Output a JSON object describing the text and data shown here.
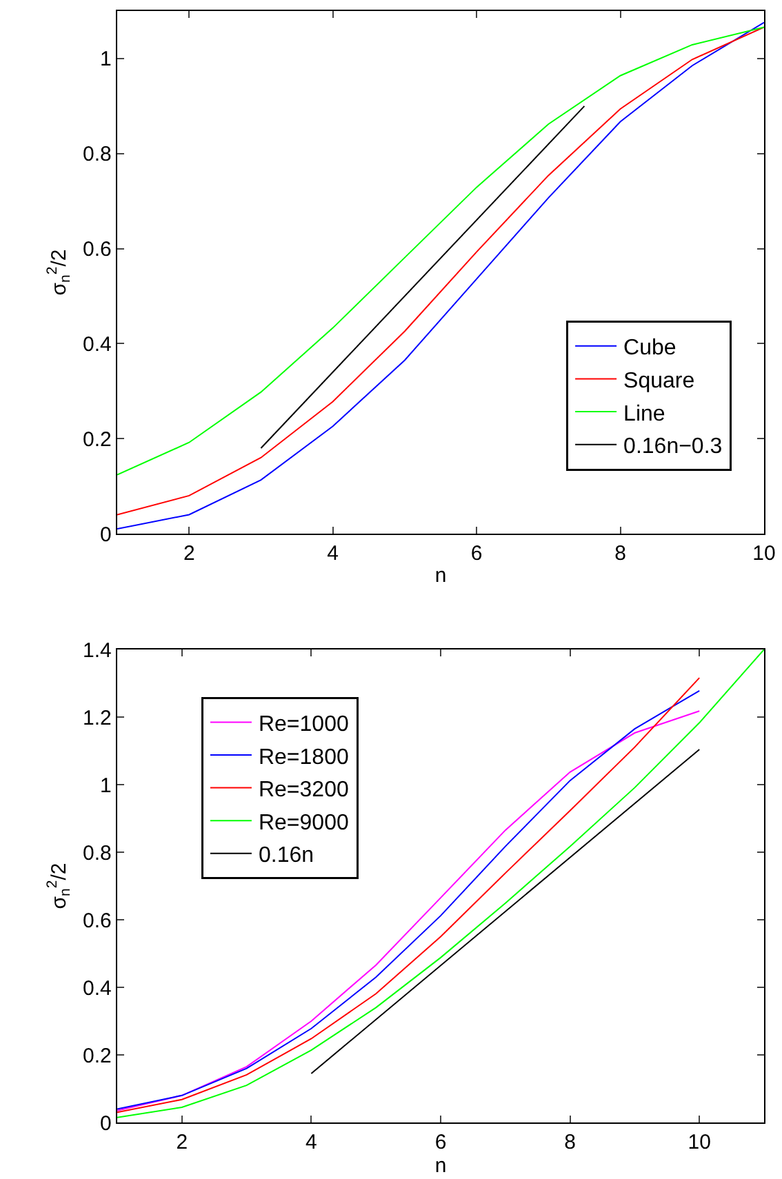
{
  "chart_data": [
    {
      "type": "line",
      "xlabel": "n",
      "ylabel": "σ$_{n}$$^{2}$/2",
      "x": [
        1,
        2,
        3,
        4,
        5,
        6,
        7,
        8,
        9,
        10
      ],
      "xlim": [
        1,
        10
      ],
      "xticks": [
        2,
        4,
        6,
        8,
        10
      ],
      "ylim": [
        0,
        1.1
      ],
      "yticks": [
        0,
        0.2,
        0.4,
        0.6,
        0.8,
        1
      ],
      "grid": false,
      "legend": "bottom right",
      "line_style": "solid",
      "marker": "none",
      "series": [
        {
          "name": "Cube",
          "color": "#0000ff",
          "values": [
            0.01,
            0.04,
            0.113,
            0.226,
            0.365,
            0.536,
            0.707,
            0.867,
            0.985,
            1.076
          ]
        },
        {
          "name": "Square",
          "color": "#ff0000",
          "values": [
            0.04,
            0.08,
            0.16,
            0.278,
            0.426,
            0.593,
            0.754,
            0.894,
            0.998,
            1.066
          ]
        },
        {
          "name": "Line",
          "color": "#00ff00",
          "values": [
            0.124,
            0.192,
            0.298,
            0.433,
            0.581,
            0.729,
            0.862,
            0.964,
            1.029,
            1.066
          ]
        },
        {
          "name": "0.16n−0.3",
          "color": "#000000",
          "x": [
            3,
            7.5
          ],
          "values": [
            0.18,
            0.9
          ]
        }
      ]
    },
    {
      "type": "line",
      "xlabel": "n",
      "ylabel": "σ$_{n}$$^{2}$/2",
      "x": [
        1,
        2,
        3,
        4,
        5,
        6,
        7,
        8,
        9,
        10
      ],
      "xlim": [
        1,
        11
      ],
      "xticks": [
        2,
        4,
        6,
        8,
        10
      ],
      "ylim": [
        0,
        1.4
      ],
      "yticks": [
        0,
        0.2,
        0.4,
        0.6,
        0.8,
        1,
        1.2,
        1.4
      ],
      "grid": false,
      "legend": "top left",
      "line_style": "solid",
      "marker": "none",
      "series": [
        {
          "name": "Re=1000",
          "color": "#ff00ff",
          "values": [
            0.035,
            0.08,
            0.165,
            0.3,
            0.466,
            0.665,
            0.865,
            1.037,
            1.153,
            1.218
          ]
        },
        {
          "name": "Re=1800",
          "color": "#0000ff",
          "values": [
            0.04,
            0.08,
            0.16,
            0.278,
            0.43,
            0.612,
            0.817,
            1.012,
            1.165,
            1.278
          ]
        },
        {
          "name": "Re=3200",
          "color": "#ff0000",
          "values": [
            0.03,
            0.068,
            0.141,
            0.248,
            0.381,
            0.55,
            0.738,
            0.923,
            1.111,
            1.316
          ]
        },
        {
          "name": "Re=9000",
          "color": "#00ff00",
          "x": [
            1,
            2,
            3,
            4,
            5,
            6,
            7,
            8,
            9,
            10,
            11
          ],
          "values": [
            0.015,
            0.045,
            0.11,
            0.214,
            0.34,
            0.488,
            0.649,
            0.817,
            0.991,
            1.183,
            1.4
          ]
        },
        {
          "name": "0.16n",
          "color": "#000000",
          "x": [
            4,
            10
          ],
          "values": [
            0.145,
            1.104
          ]
        }
      ]
    }
  ]
}
